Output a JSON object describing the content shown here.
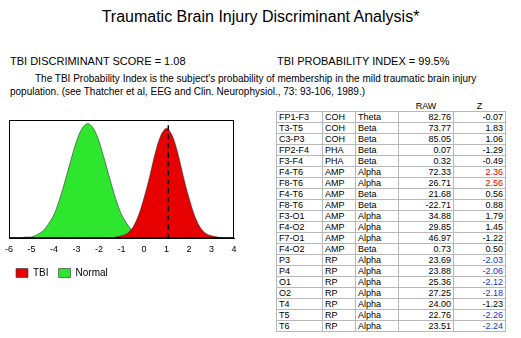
{
  "header": {
    "title": "Traumatic Brain Injury Discriminant Analysis*",
    "score_text": "TBI DISCRIMINANT SCORE = 1.08",
    "probability_text": "TBI PROBABILITY INDEX = 99.5%",
    "note": "The TBI Probability Index is the subject's probability of membership in the mild traumatic brain injury population.  (see Thatcher et al, EEG and Clin. Neurophysiol., 73: 93-106, 1989.)"
  },
  "chart_data": {
    "type": "area",
    "x": [
      -6,
      -5.75,
      -5.5,
      -5.25,
      -5,
      -4.75,
      -4.5,
      -4.25,
      -4,
      -3.75,
      -3.5,
      -3.25,
      -3,
      -2.75,
      -2.5,
      -2.25,
      -2,
      -1.75,
      -1.5,
      -1.25,
      -1,
      -0.75,
      -0.5,
      -0.25,
      0,
      0.25,
      0.5,
      0.75,
      1,
      1.25,
      1.5,
      1.75,
      2,
      2.25,
      2.5,
      2.75,
      3,
      3.25,
      3.5,
      3.75,
      4
    ],
    "series": [
      {
        "name": "Normal",
        "color": "#2ee62e",
        "values": [
          0,
          0,
          0,
          0.01,
          0.01,
          0.03,
          0.06,
          0.12,
          0.2,
          0.33,
          0.49,
          0.66,
          0.82,
          0.93,
          0.97,
          0.93,
          0.82,
          0.66,
          0.49,
          0.33,
          0.2,
          0.12,
          0.06,
          0.03,
          0.01,
          0.01,
          0,
          0,
          0,
          0,
          0,
          0,
          0,
          0,
          0,
          0,
          0,
          0,
          0,
          0,
          0
        ]
      },
      {
        "name": "TBI",
        "color": "#e60000",
        "values": [
          0,
          0,
          0,
          0,
          0,
          0,
          0,
          0,
          0,
          0,
          0,
          0,
          0,
          0,
          0,
          0,
          0,
          0,
          0,
          0.01,
          0.02,
          0.04,
          0.09,
          0.19,
          0.34,
          0.52,
          0.72,
          0.87,
          0.93,
          0.87,
          0.72,
          0.52,
          0.34,
          0.19,
          0.09,
          0.04,
          0.02,
          0.01,
          0,
          0,
          0
        ]
      }
    ],
    "discriminant_score": 1.08,
    "xlim": [
      -6,
      4
    ],
    "xticks": [
      -6,
      -5,
      -4,
      -3,
      -2,
      -1,
      0,
      1,
      2,
      3,
      4
    ],
    "ylim": [
      0,
      1
    ],
    "tick_labels": "x",
    "grid": false,
    "legend": "bottom-left"
  },
  "table": {
    "columns": [
      "RAW",
      "Z"
    ],
    "rows": [
      [
        "FP1-F3",
        "COH",
        "Theta",
        "82.76",
        "-0.07"
      ],
      [
        "T3-T5",
        "COH",
        "Beta",
        "73.77",
        "1.83"
      ],
      [
        "C3-P3",
        "COH",
        "Beta",
        "85.05",
        "1.06"
      ],
      [
        "FP2-F4",
        "PHA",
        "Beta",
        "0.07",
        "-1.29"
      ],
      [
        "F3-F4",
        "PHA",
        "Beta",
        "0.32",
        "-0.49"
      ],
      [
        "F4-T6",
        "AMP",
        "Alpha",
        "72.33",
        "2.36"
      ],
      [
        "F8-T6",
        "AMP",
        "Alpha",
        "26.71",
        "2.56"
      ],
      [
        "F4-T6",
        "AMP",
        "Beta",
        "21.68",
        "0.56"
      ],
      [
        "F8-T6",
        "AMP",
        "Beta",
        "-22.71",
        "0.88"
      ],
      [
        "F3-O1",
        "AMP",
        "Alpha",
        "34.88",
        "1.79"
      ],
      [
        "F4-O2",
        "AMP",
        "Alpha",
        "29.85",
        "1.45"
      ],
      [
        "F7-O1",
        "AMP",
        "Alpha",
        "46.97",
        "-1.22"
      ],
      [
        "F4-O2",
        "AMP",
        "Beta",
        "0.73",
        "0.50"
      ],
      [
        "P3",
        "RP",
        "Alpha",
        "23.69",
        "-2.03"
      ],
      [
        "P4",
        "RP",
        "Alpha",
        "23.88",
        "-2.06"
      ],
      [
        "O1",
        "RP",
        "Alpha",
        "25.36",
        "-2.12"
      ],
      [
        "O2",
        "RP",
        "Alpha",
        "27.25",
        "-2.18"
      ],
      [
        "T4",
        "RP",
        "Alpha",
        "24.00",
        "-1.23"
      ],
      [
        "T5",
        "RP",
        "Alpha",
        "22.76",
        "-2.26"
      ],
      [
        "T6",
        "RP",
        "Alpha",
        "23.51",
        "-2.24"
      ]
    ],
    "z_colors": [
      "#000000",
      "#000000",
      "#000000",
      "#000000",
      "#000000",
      "#e00000",
      "#e00000",
      "#000000",
      "#000000",
      "#000000",
      "#000000",
      "#000000",
      "#000000",
      "#2233cc",
      "#2233cc",
      "#2233cc",
      "#2233cc",
      "#000000",
      "#2233cc",
      "#2233cc"
    ]
  }
}
